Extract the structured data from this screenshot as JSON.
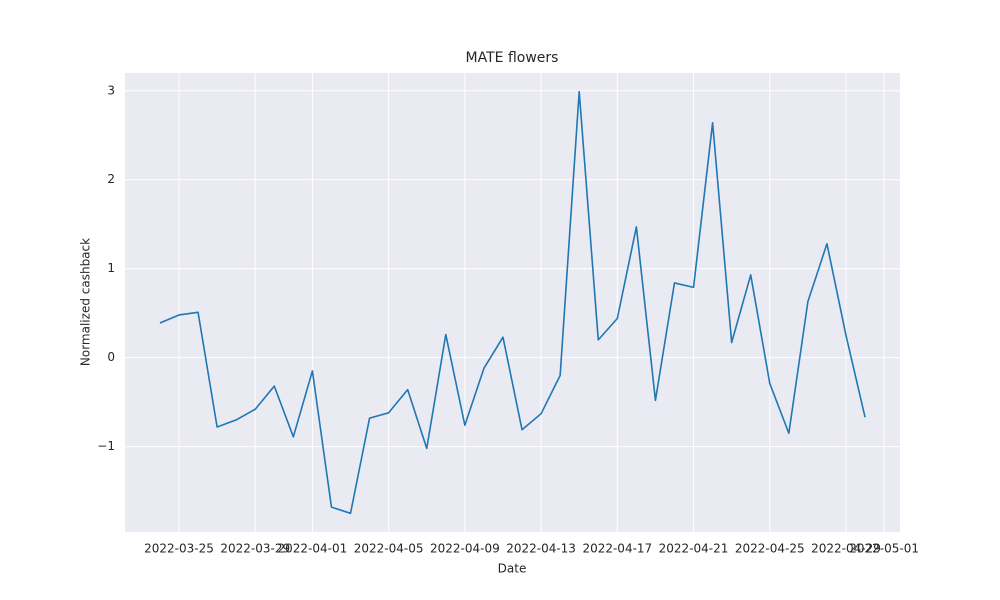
{
  "chart_data": {
    "type": "line",
    "title": "MATE flowers",
    "xlabel": "Date",
    "ylabel": "Normalized cashback",
    "x": [
      "2022-03-24",
      "2022-03-25",
      "2022-03-26",
      "2022-03-27",
      "2022-03-28",
      "2022-03-29",
      "2022-03-30",
      "2022-03-31",
      "2022-04-01",
      "2022-04-02",
      "2022-04-03",
      "2022-04-04",
      "2022-04-05",
      "2022-04-06",
      "2022-04-07",
      "2022-04-08",
      "2022-04-09",
      "2022-04-10",
      "2022-04-11",
      "2022-04-12",
      "2022-04-13",
      "2022-04-14",
      "2022-04-15",
      "2022-04-16",
      "2022-04-17",
      "2022-04-18",
      "2022-04-19",
      "2022-04-20",
      "2022-04-21",
      "2022-04-22",
      "2022-04-23",
      "2022-04-24",
      "2022-04-25",
      "2022-04-26",
      "2022-04-27",
      "2022-04-28",
      "2022-04-29",
      "2022-04-30"
    ],
    "series": [
      {
        "name": "MATE flowers",
        "color": "#1f77b4",
        "values": [
          0.39,
          0.48,
          0.51,
          -0.78,
          -0.7,
          -0.58,
          -0.32,
          -0.89,
          -0.15,
          -1.68,
          -1.75,
          -0.68,
          -0.62,
          -0.36,
          -1.02,
          0.26,
          -0.76,
          -0.12,
          0.23,
          -0.81,
          -0.63,
          -0.2,
          2.99,
          0.2,
          0.44,
          1.47,
          -0.48,
          0.84,
          0.79,
          2.64,
          0.17,
          0.93,
          -0.29,
          -0.85,
          0.63,
          1.28,
          0.25,
          -0.67
        ]
      }
    ],
    "xlim": [
      "2022-03-22T04:00",
      "2022-05-01T20:00"
    ],
    "xticks": [
      "2022-03-25",
      "2022-03-29",
      "2022-04-01",
      "2022-04-05",
      "2022-04-09",
      "2022-04-13",
      "2022-04-17",
      "2022-04-21",
      "2022-04-25",
      "2022-04-29",
      "2022-05-01"
    ],
    "ylim": [
      -1.96,
      3.2
    ],
    "yticks": [
      {
        "value": -1,
        "label": "−1"
      },
      0,
      1,
      2,
      3
    ],
    "grid": true
  }
}
